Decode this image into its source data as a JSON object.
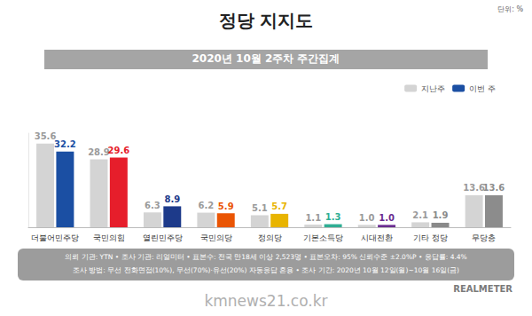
{
  "chart_data": {
    "type": "bar",
    "title": "정당 지지도",
    "subtitle": "2020년 10월 2주차 주간집계",
    "unit": "단위: %",
    "categories": [
      "더불어민주당",
      "국민의힘",
      "열린민주당",
      "국민의당",
      "정의당",
      "기본소득당",
      "시대전환",
      "기타 정당",
      "무당층"
    ],
    "series": [
      {
        "name": "지난주",
        "color": "#d4d4d4",
        "values": [
          35.6,
          28.9,
          6.3,
          6.2,
          5.1,
          1.1,
          1.0,
          2.1,
          13.6
        ],
        "value_labels": [
          "35.6",
          "28.9",
          "6.3",
          "6.2",
          "5.1",
          "1.1",
          "1.0",
          "2.1",
          "13.6"
        ]
      },
      {
        "name": "이번 주",
        "colors": [
          "#1b4fa3",
          "#e61e2b",
          "#1d3a8a",
          "#ea5504",
          "#e8b400",
          "#2fae94",
          "#6a2c91",
          "#8a8a8a",
          "#8c8c8c"
        ],
        "values": [
          32.2,
          29.6,
          8.9,
          5.9,
          5.7,
          1.3,
          1.0,
          1.9,
          13.6
        ],
        "value_labels": [
          "32.2",
          "29.6",
          "8.9",
          "5.9",
          "5.7",
          "1.3",
          "1.0",
          "1.9",
          "13.6"
        ]
      }
    ],
    "ylim": [
      0,
      40
    ],
    "yticks": [
      0,
      40
    ],
    "tick_labels": "x",
    "grid": false,
    "data_labels": true,
    "legend": "top-right",
    "notes": [
      "의뢰 기관: YTN • 조사 기관: 리얼미터 • 표본수: 전국 만18세 이상 2,523명 • 표본오차: 95% 신뢰수준 ±2.0%P • 응답률: 4.4%",
      "조사 방법: 무선 전화면접(10%), 무선(70%)·유선(20%) 자동응답 혼용 • 조사 기간: 2020년 10월 12일(월)~10월 16일(금)"
    ],
    "credit": "REALMETER",
    "watermark": "kmnews21.co.kr"
  }
}
